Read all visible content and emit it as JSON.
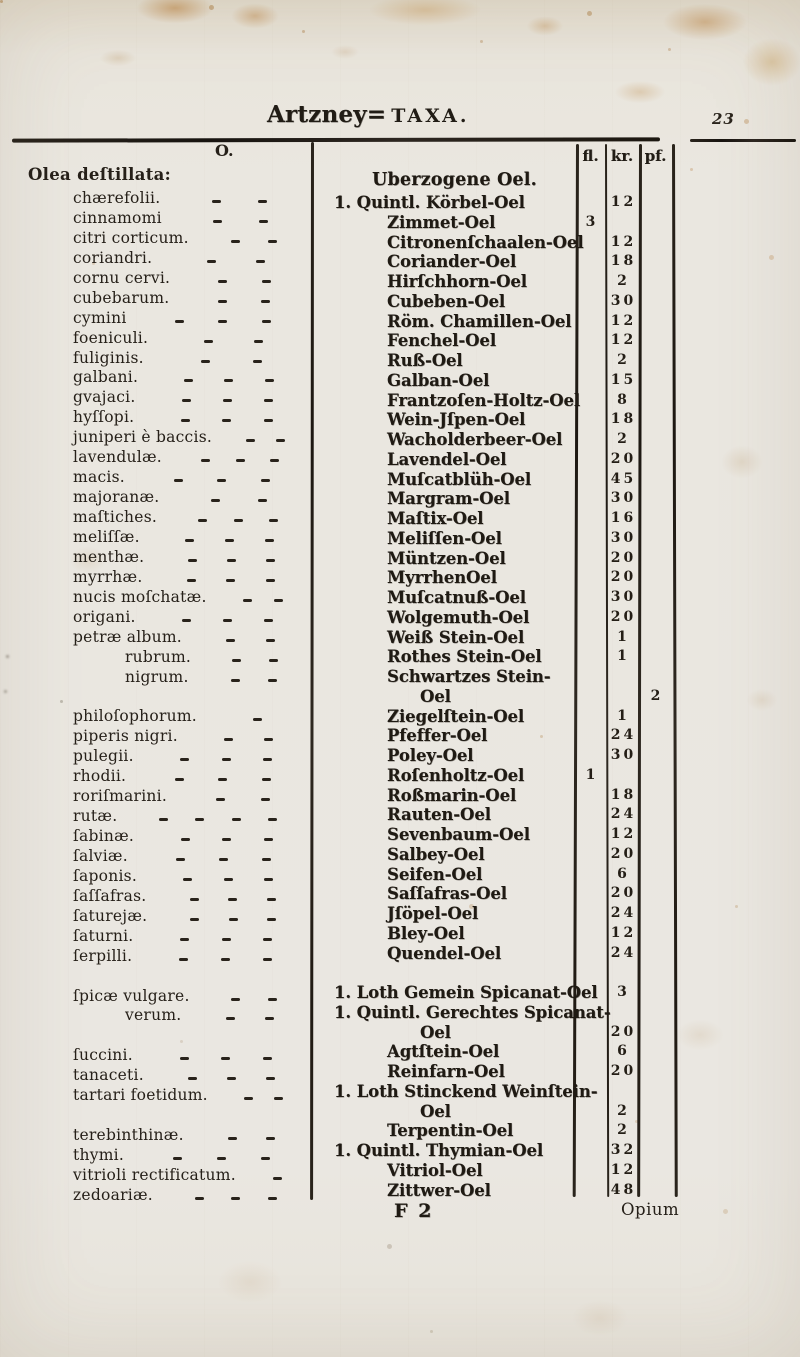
{
  "header": {
    "title_blackletter": "Artzney=",
    "title_roman": "TAXA.",
    "page_number": "23"
  },
  "price_columns": {
    "fl": "fl.",
    "kr": "kr.",
    "pf": "pf."
  },
  "left_column": {
    "section_letter": "O.",
    "group_title": "Olea deſtillata:",
    "rows": [
      {
        "name": "chærefolii.",
        "indent": 1,
        "dashes": 2
      },
      {
        "name": "cinnamomi",
        "indent": 1,
        "dashes": 2
      },
      {
        "name": "citri corticum.",
        "indent": 1,
        "dashes": 2
      },
      {
        "name": "coriandri.",
        "indent": 1,
        "dashes": 2
      },
      {
        "name": "cornu cervi.",
        "indent": 1,
        "dashes": 2
      },
      {
        "name": "cubebarum.",
        "indent": 1,
        "dashes": 2
      },
      {
        "name": "cymini",
        "indent": 1,
        "dashes": 3
      },
      {
        "name": "foeniculi.",
        "indent": 1,
        "dashes": 2
      },
      {
        "name": "fuliginis.",
        "indent": 1,
        "dashes": 2
      },
      {
        "name": "galbani.",
        "indent": 1,
        "dashes": 3
      },
      {
        "name": "gvajaci.",
        "indent": 1,
        "dashes": 3
      },
      {
        "name": "hyſſopi.",
        "indent": 1,
        "dashes": 3
      },
      {
        "name": "juniperi è baccis.",
        "indent": 1,
        "dashes": 2
      },
      {
        "name": "lavendulæ.",
        "indent": 1,
        "dashes": 3
      },
      {
        "name": "macis.",
        "indent": 1,
        "dashes": 3
      },
      {
        "name": "majoranæ.",
        "indent": 1,
        "dashes": 2
      },
      {
        "name": "maſtiches.",
        "indent": 1,
        "dashes": 3
      },
      {
        "name": "meliſſæ.",
        "indent": 1,
        "dashes": 3
      },
      {
        "name": "menthæ.",
        "indent": 1,
        "dashes": 3
      },
      {
        "name": "myrrhæ.",
        "indent": 1,
        "dashes": 3
      },
      {
        "name": "nucis moſchatæ.",
        "indent": 1,
        "dashes": 2
      },
      {
        "name": "origani.",
        "indent": 1,
        "dashes": 3
      },
      {
        "name": "petræ album.",
        "indent": 1,
        "dashes": 2
      },
      {
        "name": "rubrum.",
        "indent": 2,
        "dashes": 2
      },
      {
        "name": "nigrum.",
        "indent": 2,
        "dashes": 2
      },
      {
        "blank": true
      },
      {
        "name": "philoſophorum.",
        "indent": 1,
        "dashes": 1
      },
      {
        "name": "piperis nigri.",
        "indent": 1,
        "dashes": 2
      },
      {
        "name": "pulegii.",
        "indent": 1,
        "dashes": 3
      },
      {
        "name": "rhodii.",
        "indent": 1,
        "dashes": 3
      },
      {
        "name": "roriſmarini.",
        "indent": 1,
        "dashes": 2
      },
      {
        "name": "rutæ.",
        "indent": 1,
        "dashes": 4
      },
      {
        "name": "ſabinæ.",
        "indent": 1,
        "dashes": 3
      },
      {
        "name": "ſalviæ.",
        "indent": 1,
        "dashes": 3
      },
      {
        "name": "ſaponis.",
        "indent": 1,
        "dashes": 3
      },
      {
        "name": "ſaſſafras.",
        "indent": 1,
        "dashes": 3
      },
      {
        "name": "ſaturejæ.",
        "indent": 1,
        "dashes": 3
      },
      {
        "name": "ſaturni.",
        "indent": 1,
        "dashes": 3
      },
      {
        "name": "ſerpilli.",
        "indent": 1,
        "dashes": 3
      },
      {
        "blank": true
      },
      {
        "name": "ſpicæ vulgare.",
        "indent": 1,
        "dashes": 2
      },
      {
        "name": "verum.",
        "indent": 2,
        "dashes": 2
      },
      {
        "blank": true
      },
      {
        "name": "ſuccini.",
        "indent": 1,
        "dashes": 3
      },
      {
        "name": "tanaceti.",
        "indent": 1,
        "dashes": 3
      },
      {
        "name": "tartari foetidum.",
        "indent": 1,
        "dashes": 2
      },
      {
        "blank": true
      },
      {
        "name": "terebinthinæ.",
        "indent": 1,
        "dashes": 2
      },
      {
        "name": "thymi.",
        "indent": 1,
        "dashes": 3
      },
      {
        "name": "vitrioli rectificatum.",
        "indent": 1,
        "dashes": 1
      },
      {
        "name": "zedoariæ.",
        "indent": 1,
        "dashes": 3
      }
    ]
  },
  "right_column": {
    "heading": "Uberzogene Oel.",
    "rows": [
      {
        "name": "1. Quintl. Körbel-Oel",
        "indent": 0,
        "fl": "",
        "kr": "12",
        "pf": ""
      },
      {
        "name": "Zimmet-Oel",
        "indent": 1,
        "fl": "3",
        "kr": "",
        "pf": ""
      },
      {
        "name": "Citronenſchaalen-Oel",
        "indent": 1,
        "fl": "",
        "kr": "12",
        "pf": ""
      },
      {
        "name": "Coriander-Oel",
        "indent": 1,
        "fl": "",
        "kr": "18",
        "pf": ""
      },
      {
        "name": "Hirſchhorn-Oel",
        "indent": 1,
        "fl": "",
        "kr": "2",
        "pf": ""
      },
      {
        "name": "Cubeben-Oel",
        "indent": 1,
        "fl": "",
        "kr": "30",
        "pf": ""
      },
      {
        "name": "Röm. Chamillen-Oel",
        "indent": 1,
        "fl": "",
        "kr": "12",
        "pf": ""
      },
      {
        "name": "Fenchel-Oel",
        "indent": 1,
        "fl": "",
        "kr": "12",
        "pf": ""
      },
      {
        "name": "Ruß-Oel",
        "indent": 1,
        "fl": "",
        "kr": "2",
        "pf": ""
      },
      {
        "name": "Galban-Oel",
        "indent": 1,
        "fl": "",
        "kr": "15",
        "pf": ""
      },
      {
        "name": "Frantzoſen-Holtz-Oel",
        "indent": 1,
        "fl": "",
        "kr": "8",
        "pf": ""
      },
      {
        "name": "Wein-Jſpen-Oel",
        "indent": 1,
        "fl": "",
        "kr": "18",
        "pf": ""
      },
      {
        "name": "Wacholderbeer-Oel",
        "indent": 1,
        "fl": "",
        "kr": "2",
        "pf": ""
      },
      {
        "name": "Lavendel-Oel",
        "indent": 1,
        "fl": "",
        "kr": "20",
        "pf": ""
      },
      {
        "name": "Muſcatblüh-Oel",
        "indent": 1,
        "fl": "",
        "kr": "45",
        "pf": ""
      },
      {
        "name": "Margram-Oel",
        "indent": 1,
        "fl": "",
        "kr": "30",
        "pf": ""
      },
      {
        "name": "Maſtix-Oel",
        "indent": 1,
        "fl": "",
        "kr": "16",
        "pf": ""
      },
      {
        "name": "Meliſſen-Oel",
        "indent": 1,
        "fl": "",
        "kr": "30",
        "pf": ""
      },
      {
        "name": "Müntzen-Oel",
        "indent": 1,
        "fl": "",
        "kr": "20",
        "pf": ""
      },
      {
        "name": "MyrrhenOel",
        "indent": 1,
        "fl": "",
        "kr": "20",
        "pf": ""
      },
      {
        "name": "Muſcatnuß-Oel",
        "indent": 1,
        "fl": "",
        "kr": "30",
        "pf": ""
      },
      {
        "name": "Wolgemuth-Oel",
        "indent": 1,
        "fl": "",
        "kr": "20",
        "pf": ""
      },
      {
        "name": "Weiß Stein-Oel",
        "indent": 1,
        "fl": "",
        "kr": "1",
        "pf": ""
      },
      {
        "name": "Rothes Stein-Oel",
        "indent": 1,
        "fl": "",
        "kr": "1",
        "pf": ""
      },
      {
        "name": "Schwartzes Stein-",
        "indent": 1,
        "fl": "",
        "kr": "",
        "pf": ""
      },
      {
        "name": "Oel",
        "indent": 2,
        "fl": "",
        "kr": "",
        "pf": "2"
      },
      {
        "name": "Ziegelſtein-Oel",
        "indent": 1,
        "fl": "",
        "kr": "1",
        "pf": ""
      },
      {
        "name": "Pfeffer-Oel",
        "indent": 1,
        "fl": "",
        "kr": "24",
        "pf": ""
      },
      {
        "name": "Poley-Oel",
        "indent": 1,
        "fl": "",
        "kr": "30",
        "pf": ""
      },
      {
        "name": "Roſenholtz-Oel",
        "indent": 1,
        "fl": "1",
        "kr": "",
        "pf": ""
      },
      {
        "name": "Roßmarin-Oel",
        "indent": 1,
        "fl": "",
        "kr": "18",
        "pf": ""
      },
      {
        "name": "Rauten-Oel",
        "indent": 1,
        "fl": "",
        "kr": "24",
        "pf": ""
      },
      {
        "name": "Sevenbaum-Oel",
        "indent": 1,
        "fl": "",
        "kr": "12",
        "pf": ""
      },
      {
        "name": "Salbey-Oel",
        "indent": 1,
        "fl": "",
        "kr": "20",
        "pf": ""
      },
      {
        "name": "Seifen-Oel",
        "indent": 1,
        "fl": "",
        "kr": "6",
        "pf": ""
      },
      {
        "name": "Saſſafras-Oel",
        "indent": 1,
        "fl": "",
        "kr": "20",
        "pf": ""
      },
      {
        "name": "Jſöpel-Oel",
        "indent": 1,
        "fl": "",
        "kr": "24",
        "pf": ""
      },
      {
        "name": "Bley-Oel",
        "indent": 1,
        "fl": "",
        "kr": "12",
        "pf": ""
      },
      {
        "name": "Quendel-Oel",
        "indent": 1,
        "fl": "",
        "kr": "24",
        "pf": ""
      },
      {
        "blank": true
      },
      {
        "name": "1. Loth Gemein Spicanat-Oel",
        "indent": 0,
        "fl": "",
        "kr": "3",
        "pf": ""
      },
      {
        "name": "1. Quintl. Gerechtes Spicanat-",
        "indent": 0,
        "fl": "",
        "kr": "",
        "pf": ""
      },
      {
        "name": "Oel",
        "indent": 2,
        "fl": "",
        "kr": "20",
        "pf": ""
      },
      {
        "name": "Agtſtein-Oel",
        "indent": 1,
        "fl": "",
        "kr": "6",
        "pf": ""
      },
      {
        "name": "Reinfarn-Oel",
        "indent": 1,
        "fl": "",
        "kr": "20",
        "pf": ""
      },
      {
        "name": "1. Loth Stinckend Weinſtein-",
        "indent": 0,
        "fl": "",
        "kr": "",
        "pf": ""
      },
      {
        "name": "Oel",
        "indent": 2,
        "fl": "",
        "kr": "2",
        "pf": ""
      },
      {
        "name": "Terpentin-Oel",
        "indent": 1,
        "fl": "",
        "kr": "2",
        "pf": ""
      },
      {
        "name": "1. Quintl. Thymian-Oel",
        "indent": 0,
        "fl": "",
        "kr": "32",
        "pf": ""
      },
      {
        "name": "Vitriol-Oel",
        "indent": 1,
        "fl": "",
        "kr": "12",
        "pf": ""
      },
      {
        "name": "Zittwer-Oel",
        "indent": 1,
        "fl": "",
        "kr": "48",
        "pf": ""
      }
    ]
  },
  "footer": {
    "signature": "F 2",
    "catchword": "Opium"
  },
  "colors": {
    "paper": "#eae7e0",
    "ink": "#241f18",
    "stain": "#b9824a"
  }
}
